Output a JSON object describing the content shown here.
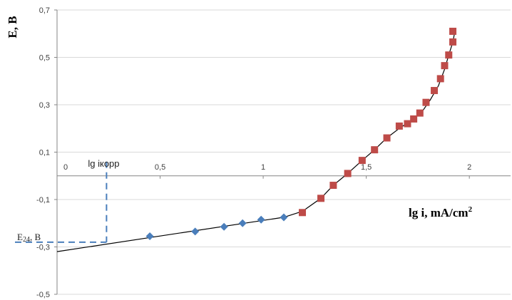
{
  "chart_data": {
    "type": "scatter",
    "title": "",
    "xlabel": "lg i, mA/cm",
    "xlabel_sup": "2",
    "ylabel": "E, B",
    "xlim": [
      0,
      2.2
    ],
    "ylim": [
      -0.5,
      0.7
    ],
    "x_ticks": [
      {
        "value": 0,
        "label": "0"
      },
      {
        "value": 0.5,
        "label": "0,5"
      },
      {
        "value": 1,
        "label": "1"
      },
      {
        "value": 1.5,
        "label": "1,5"
      },
      {
        "value": 2,
        "label": "2"
      }
    ],
    "y_ticks": [
      {
        "value": 0.7,
        "label": "0,7"
      },
      {
        "value": 0.5,
        "label": "0,5"
      },
      {
        "value": 0.3,
        "label": "0,3"
      },
      {
        "value": 0.1,
        "label": "0,1"
      },
      {
        "value": -0.1,
        "label": "-0,1"
      },
      {
        "value": -0.3,
        "label": "-0,3"
      },
      {
        "value": -0.5,
        "label": "-0,5"
      }
    ],
    "horizontal_grid": true,
    "vertical_grid": false,
    "series": [
      {
        "marker": "diamond",
        "color": "#4a7ebb",
        "points": [
          [
            0.45,
            -0.255
          ],
          [
            0.67,
            -0.235
          ],
          [
            0.81,
            -0.215
          ],
          [
            0.9,
            -0.2
          ],
          [
            0.99,
            -0.185
          ],
          [
            1.1,
            -0.175
          ]
        ]
      },
      {
        "marker": "square",
        "color": "#be4b48",
        "points": [
          [
            1.19,
            -0.155
          ],
          [
            1.28,
            -0.095
          ],
          [
            1.34,
            -0.04
          ],
          [
            1.41,
            0.01
          ],
          [
            1.48,
            0.065
          ],
          [
            1.54,
            0.11
          ],
          [
            1.6,
            0.16
          ],
          [
            1.66,
            0.21
          ],
          [
            1.7,
            0.22
          ],
          [
            1.73,
            0.24
          ],
          [
            1.76,
            0.265
          ],
          [
            1.79,
            0.31
          ],
          [
            1.83,
            0.36
          ],
          [
            1.86,
            0.41
          ],
          [
            1.88,
            0.465
          ],
          [
            1.9,
            0.51
          ],
          [
            1.92,
            0.565
          ],
          [
            1.92,
            0.61
          ]
        ]
      }
    ],
    "fit_lines": [
      {
        "color": "#000000",
        "points": [
          [
            0,
            -0.32
          ],
          [
            1.1,
            -0.175
          ],
          [
            1.19,
            -0.15
          ]
        ]
      },
      {
        "color": "#000000",
        "points": [
          [
            1.19,
            -0.15
          ],
          [
            1.28,
            -0.095
          ],
          [
            1.34,
            -0.04
          ],
          [
            1.41,
            0.01
          ],
          [
            1.48,
            0.065
          ],
          [
            1.54,
            0.11
          ],
          [
            1.6,
            0.16
          ],
          [
            1.66,
            0.2
          ],
          [
            1.72,
            0.235
          ],
          [
            1.77,
            0.27
          ],
          [
            1.81,
            0.32
          ],
          [
            1.85,
            0.38
          ],
          [
            1.88,
            0.45
          ],
          [
            1.9,
            0.51
          ],
          [
            1.92,
            0.565
          ],
          [
            1.93,
            0.61
          ]
        ]
      }
    ],
    "annotations": {
      "corrosion_label": "lg iкорр",
      "corrosion_x": 0.24,
      "potential_label": "E",
      "potential_sub": "24",
      "potential_unit": ", B",
      "potential_y": -0.28
    }
  }
}
